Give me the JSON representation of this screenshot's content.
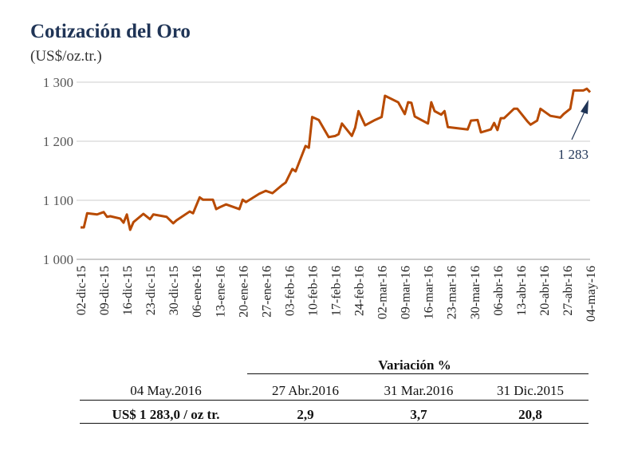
{
  "chart_data": {
    "type": "line",
    "title": "Cotización del Oro",
    "ylabel": "(US$/oz.tr.)",
    "ylim": [
      1000,
      1300
    ],
    "yticks": [
      1000,
      1100,
      1200,
      1300
    ],
    "ytick_labels": [
      "1 000",
      "1 100",
      "1 200",
      "1 300"
    ],
    "xlim_days": [
      0,
      154
    ],
    "x_tick_labels": [
      "02-dic-15",
      "09-dic-15",
      "16-dic-15",
      "23-dic-15",
      "30-dic-15",
      "06-ene-16",
      "13-ene-16",
      "20-ene-16",
      "27-ene-16",
      "03-feb-16",
      "10-feb-16",
      "17-feb-16",
      "24-feb-16",
      "02-mar-16",
      "09-mar-16",
      "16-mar-16",
      "23-mar-16",
      "30-mar-16",
      "06-abr-16",
      "13-abr-16",
      "20-abr-16",
      "27-abr-16",
      "04-may-16"
    ],
    "grid": true,
    "series": [
      {
        "name": "Oro",
        "color": "#b84a00",
        "x": [
          0,
          1,
          2,
          5,
          7,
          8,
          9,
          12,
          13,
          14,
          15,
          16,
          19,
          21,
          22,
          26,
          28,
          29,
          33,
          34,
          36,
          37,
          40,
          41,
          42,
          44,
          48,
          49,
          50,
          54,
          56,
          58,
          61,
          62,
          64,
          65,
          68,
          69,
          70,
          72,
          75,
          77,
          78,
          79,
          82,
          83,
          84,
          86,
          89,
          91,
          92,
          96,
          98,
          99,
          100,
          101,
          105,
          106,
          107,
          109,
          110,
          111,
          117,
          118,
          120,
          121,
          124,
          125,
          126,
          127,
          128,
          131,
          132,
          135,
          136,
          138,
          139,
          142,
          145,
          146,
          148,
          149,
          152,
          153,
          154
        ],
        "y": [
          1054,
          1054,
          1078,
          1076,
          1080,
          1072,
          1073,
          1069,
          1062,
          1076,
          1050,
          1063,
          1077,
          1068,
          1076,
          1072,
          1061,
          1066,
          1081,
          1078,
          1105,
          1101,
          1101,
          1085,
          1088,
          1093,
          1085,
          1101,
          1097,
          1111,
          1116,
          1112,
          1126,
          1130,
          1153,
          1149,
          1192,
          1189,
          1241,
          1236,
          1207,
          1209,
          1212,
          1230,
          1209,
          1223,
          1251,
          1227,
          1236,
          1241,
          1277,
          1266,
          1246,
          1266,
          1265,
          1242,
          1230,
          1266,
          1251,
          1245,
          1251,
          1224,
          1220,
          1235,
          1236,
          1215,
          1220,
          1231,
          1219,
          1239,
          1239,
          1255,
          1255,
          1234,
          1228,
          1235,
          1255,
          1243,
          1240,
          1246,
          1255,
          1286,
          1286,
          1289,
          1283
        ]
      }
    ],
    "annotation": "1 283"
  },
  "table": {
    "header": "Variación %",
    "columns": [
      "04 May.2016",
      "27 Abr.2016",
      "31 Mar.2016",
      "31 Dic.2015"
    ],
    "values": [
      "US$ 1 283,0 / oz tr.",
      "2,9",
      "3,7",
      "20,8"
    ]
  }
}
